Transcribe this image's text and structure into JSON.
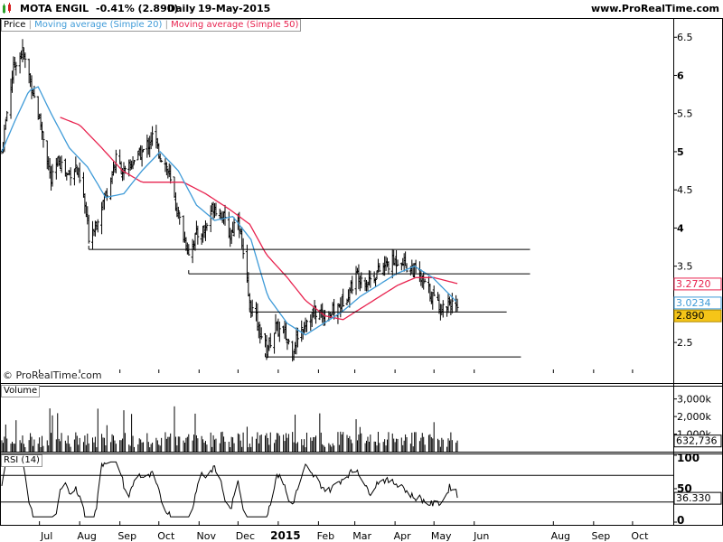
{
  "header": {
    "instrument": "MOTA ENGIL",
    "change": "-0.41% (2.890)",
    "period": "Daily",
    "date": "19-May-2015",
    "site": "www.ProRealTime.com"
  },
  "legend": {
    "price_label": "Price",
    "ma20_label": "Moving average (Simple 20)",
    "ma50_label": "Moving average (Simple 50)",
    "volume_label": "Volume",
    "rsi_label": "RSI (14)"
  },
  "copyright": "© ProRealTime.com",
  "colors": {
    "ma20": "#3f9bd8",
    "ma50": "#e8234f",
    "price_bars": "#000000",
    "last_price_badge": "#f5c518",
    "icon_up": "#2aa02a",
    "icon_down": "#d62020"
  },
  "icons": {
    "app_icon": "candlestick-chart-icon"
  },
  "chart_data": {
    "type": "ohlc",
    "x_ticks": [
      "Jul",
      "Aug",
      "Sep",
      "Oct",
      "Nov",
      "Dec",
      "2015",
      "Feb",
      "Mar",
      "Apr",
      "May",
      "Jun",
      "Aug",
      "Sep",
      "Oct"
    ],
    "price": {
      "ylim": [
        2.17,
        6.55
      ],
      "y_ticks": [
        "6.5",
        "6",
        "5.5",
        "5",
        "4.5",
        "4",
        "3.5",
        "3",
        "2.5"
      ],
      "close_anchors": [
        [
          "2014-06-02",
          5.0
        ],
        [
          "2014-06-05",
          5.4
        ],
        [
          "2014-06-10",
          6.0
        ],
        [
          "2014-06-13",
          6.2
        ],
        [
          "2014-06-18",
          6.3
        ],
        [
          "2014-06-23",
          6.0
        ],
        [
          "2014-06-30",
          5.5
        ],
        [
          "2014-07-04",
          5.2
        ],
        [
          "2014-07-10",
          4.6
        ],
        [
          "2014-07-16",
          4.9
        ],
        [
          "2014-07-22",
          4.7
        ],
        [
          "2014-07-29",
          4.8
        ],
        [
          "2014-08-04",
          4.4
        ],
        [
          "2014-08-08",
          3.9
        ],
        [
          "2014-08-14",
          4.1
        ],
        [
          "2014-08-22",
          4.5
        ],
        [
          "2014-08-29",
          4.9
        ],
        [
          "2014-09-05",
          4.7
        ],
        [
          "2014-09-12",
          4.9
        ],
        [
          "2014-09-19",
          5.0
        ],
        [
          "2014-09-26",
          5.2
        ],
        [
          "2014-10-01",
          5.0
        ],
        [
          "2014-10-07",
          4.8
        ],
        [
          "2014-10-14",
          4.3
        ],
        [
          "2014-10-20",
          3.9
        ],
        [
          "2014-10-24",
          3.7
        ],
        [
          "2014-10-30",
          3.9
        ],
        [
          "2014-11-06",
          4.0
        ],
        [
          "2014-11-12",
          4.3
        ],
        [
          "2014-11-18",
          4.2
        ],
        [
          "2014-11-25",
          3.9
        ],
        [
          "2014-12-01",
          4.2
        ],
        [
          "2014-12-05",
          3.6
        ],
        [
          "2014-12-10",
          3.0
        ],
        [
          "2014-12-15",
          2.8
        ],
        [
          "2014-12-19",
          2.6
        ],
        [
          "2014-12-23",
          2.4
        ],
        [
          "2014-12-30",
          2.7
        ],
        [
          "2015-01-06",
          2.6
        ],
        [
          "2015-01-12",
          2.4
        ],
        [
          "2015-01-16",
          2.6
        ],
        [
          "2015-01-23",
          2.8
        ],
        [
          "2015-01-30",
          2.9
        ],
        [
          "2015-02-06",
          2.85
        ],
        [
          "2015-02-12",
          2.9
        ],
        [
          "2015-02-18",
          3.0
        ],
        [
          "2015-02-25",
          3.2
        ],
        [
          "2015-03-03",
          3.4
        ],
        [
          "2015-03-10",
          3.3
        ],
        [
          "2015-03-17",
          3.4
        ],
        [
          "2015-03-24",
          3.5
        ],
        [
          "2015-03-30",
          3.55
        ],
        [
          "2015-04-06",
          3.6
        ],
        [
          "2015-04-10",
          3.5
        ],
        [
          "2015-04-16",
          3.45
        ],
        [
          "2015-04-22",
          3.3
        ],
        [
          "2015-04-28",
          3.15
        ],
        [
          "2015-05-04",
          3.0
        ],
        [
          "2015-05-08",
          2.95
        ],
        [
          "2015-05-13",
          3.05
        ],
        [
          "2015-05-19",
          2.89
        ]
      ],
      "ma20_anchors": [
        [
          "2014-06-02",
          5.0
        ],
        [
          "2014-06-12",
          5.4
        ],
        [
          "2014-06-23",
          5.8
        ],
        [
          "2014-06-30",
          5.85
        ],
        [
          "2014-07-10",
          5.5
        ],
        [
          "2014-07-24",
          5.05
        ],
        [
          "2014-08-07",
          4.8
        ],
        [
          "2014-08-21",
          4.4
        ],
        [
          "2014-09-04",
          4.45
        ],
        [
          "2014-09-18",
          4.75
        ],
        [
          "2014-10-02",
          5.0
        ],
        [
          "2014-10-16",
          4.75
        ],
        [
          "2014-10-30",
          4.3
        ],
        [
          "2014-11-13",
          4.1
        ],
        [
          "2014-11-27",
          4.15
        ],
        [
          "2014-12-11",
          3.85
        ],
        [
          "2014-12-24",
          3.1
        ],
        [
          "2015-01-08",
          2.75
        ],
        [
          "2015-01-22",
          2.6
        ],
        [
          "2015-02-05",
          2.75
        ],
        [
          "2015-02-19",
          2.9
        ],
        [
          "2015-03-05",
          3.1
        ],
        [
          "2015-03-19",
          3.25
        ],
        [
          "2015-04-02",
          3.4
        ],
        [
          "2015-04-16",
          3.5
        ],
        [
          "2015-04-30",
          3.35
        ],
        [
          "2015-05-19",
          3.0234
        ]
      ],
      "ma50_anchors": [
        [
          "2014-07-17",
          5.45
        ],
        [
          "2014-08-01",
          5.35
        ],
        [
          "2014-08-18",
          5.05
        ],
        [
          "2014-09-03",
          4.75
        ],
        [
          "2014-09-18",
          4.6
        ],
        [
          "2014-10-03",
          4.6
        ],
        [
          "2014-10-20",
          4.6
        ],
        [
          "2014-11-06",
          4.45
        ],
        [
          "2014-11-24",
          4.25
        ],
        [
          "2014-12-10",
          4.05
        ],
        [
          "2014-12-23",
          3.65
        ],
        [
          "2015-01-08",
          3.35
        ],
        [
          "2015-01-22",
          3.05
        ],
        [
          "2015-02-06",
          2.85
        ],
        [
          "2015-02-20",
          2.8
        ],
        [
          "2015-03-06",
          2.95
        ],
        [
          "2015-03-20",
          3.1
        ],
        [
          "2015-04-03",
          3.25
        ],
        [
          "2015-04-17",
          3.35
        ],
        [
          "2015-05-01",
          3.35
        ],
        [
          "2015-05-19",
          3.272
        ]
      ],
      "hlines": [
        {
          "y": 3.72,
          "from": "2014-08-08",
          "to": "2015-07-14"
        },
        {
          "y": 3.4,
          "from": "2014-10-24",
          "to": "2015-07-14"
        },
        {
          "y": 2.9,
          "from": "2014-12-10",
          "to": "2015-06-26"
        },
        {
          "y": 2.31,
          "from": "2014-12-22",
          "to": "2015-07-07"
        }
      ],
      "badges": [
        {
          "value": "3.2720",
          "y": 3.272,
          "series": "ma50"
        },
        {
          "value": "3.0234",
          "y": 3.0234,
          "series": "ma20"
        },
        {
          "value": "2.890",
          "y": 2.89,
          "series": "last"
        }
      ]
    },
    "volume": {
      "y_ticks": [
        "3,000k",
        "2,000k",
        "1,000k"
      ],
      "ylim": [
        0,
        3600
      ],
      "last_value": "632,736"
    },
    "rsi": {
      "ylim": [
        0,
        100
      ],
      "y_ticks": [
        "100",
        "50",
        "0"
      ],
      "levels": [
        70,
        30
      ],
      "last_value": "36.330"
    },
    "date_range": [
      "2014-06-02",
      "2015-10-31"
    ]
  }
}
